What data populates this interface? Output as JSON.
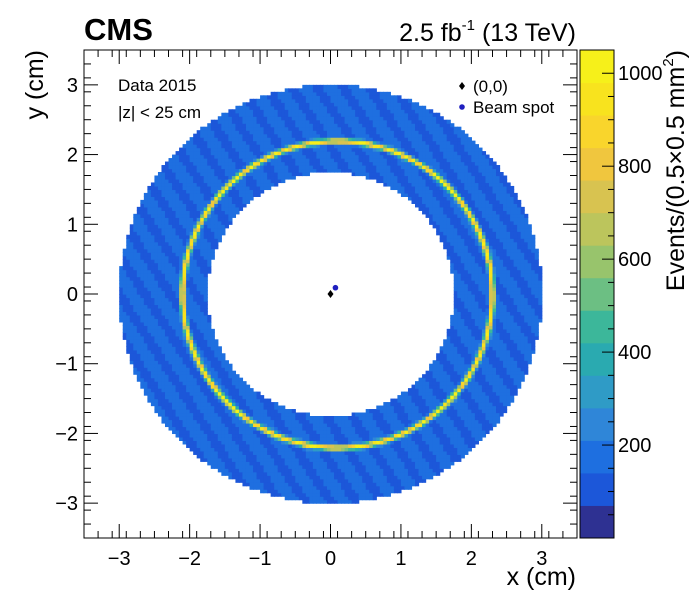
{
  "header": {
    "experiment": "CMS",
    "lumi_prefix": "2.5 fb",
    "lumi_exp": "-1",
    "lumi_suffix": " (13 TeV)"
  },
  "annotations": {
    "line1": "Data 2015",
    "line2": "|z| < 25 cm"
  },
  "legend": {
    "items": [
      {
        "label": "(0,0)",
        "marker": "diamond",
        "color": "#000000"
      },
      {
        "label": "Beam spot",
        "marker": "circle",
        "color": "#1f1fbf"
      }
    ]
  },
  "colors": {
    "fill_low": "#2a5bd7",
    "ring_high": "#f7e62a",
    "palette": [
      "#2e3192",
      "#1c57d9",
      "#1e6fe0",
      "#2f86d8",
      "#2f9bc6",
      "#2aaab0",
      "#3cb79a",
      "#6cbf83",
      "#98c46c",
      "#bcc55c",
      "#d8c350",
      "#f0c63e",
      "#f9d52c",
      "#f8e31e",
      "#f6f01a"
    ]
  },
  "chart_data": {
    "type": "heatmap",
    "xlabel": "x (cm)",
    "ylabel": "y (cm)",
    "zlabel_prefix": "Events/(0.5×0.5 mm",
    "zlabel_exp": "2",
    "zlabel_suffix": ")",
    "xlim": [
      -3.5,
      3.5
    ],
    "ylim": [
      -3.5,
      3.5
    ],
    "zlim": [
      0,
      1050
    ],
    "xticks": [
      "−3",
      "−2",
      "−1",
      "0",
      "1",
      "2",
      "3"
    ],
    "yticks": [
      "−3",
      "−2",
      "−1",
      "0",
      "1",
      "2",
      "3"
    ],
    "zticks": [
      "200",
      "400",
      "600",
      "800",
      "1000"
    ],
    "xtick_values": [
      -3,
      -2,
      -1,
      0,
      1,
      2,
      3
    ],
    "ytick_values": [
      -3,
      -2,
      -1,
      0,
      1,
      2,
      3
    ],
    "ztick_values": [
      200,
      400,
      600,
      800,
      1000
    ],
    "distribution": {
      "shape": "annulus",
      "inner_radius_cm": 1.75,
      "outer_radius_cm": 3.0,
      "high_density_ring_radius_cm": 2.2,
      "high_density_ring_center": [
        0.1,
        0.0
      ],
      "background_level": 150,
      "ring_peak": 1000
    },
    "points": [
      {
        "name": "(0,0)",
        "x": 0.0,
        "y": 0.0
      },
      {
        "name": "Beam spot",
        "x": 0.07,
        "y": 0.09
      }
    ]
  }
}
